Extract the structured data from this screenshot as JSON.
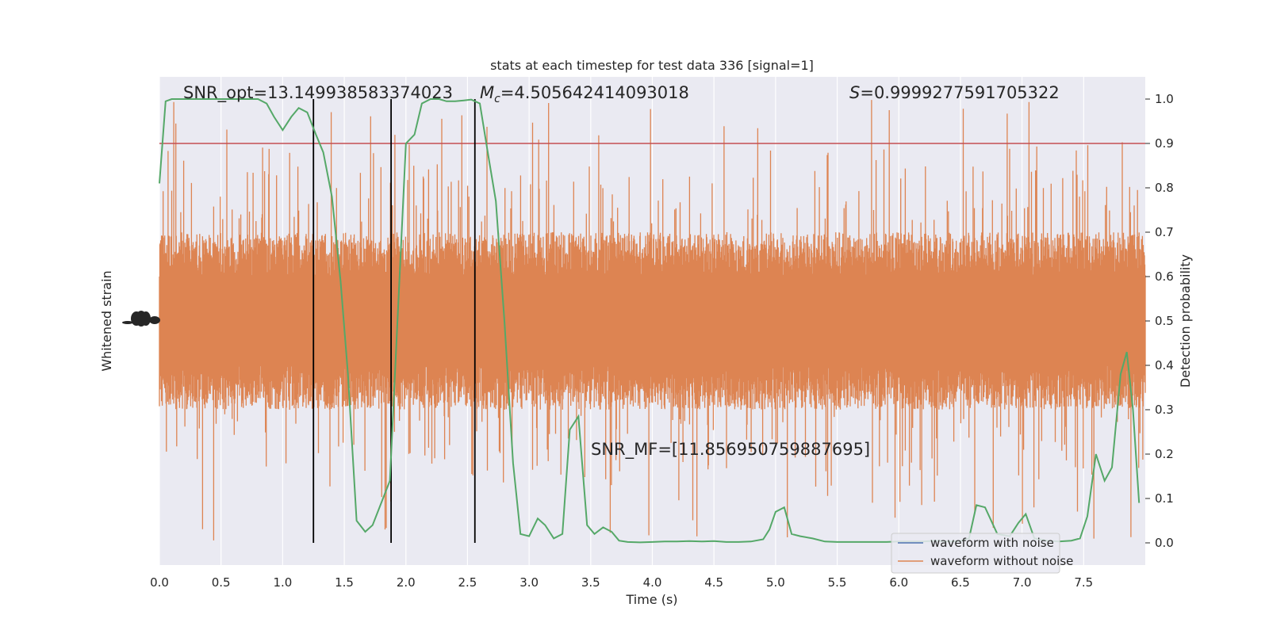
{
  "chart_data": {
    "type": "line",
    "title": "stats at each timestep for test data 336 [signal=1]",
    "xlabel": "Time (s)",
    "ylabel_left": "Whitened strain",
    "ylabel_right": "Detection probability",
    "xlim": [
      0,
      8
    ],
    "ylim_right": [
      -0.05,
      1.05
    ],
    "x_ticks": [
      "0.0",
      "0.5",
      "1.0",
      "1.5",
      "2.0",
      "2.5",
      "3.0",
      "3.5",
      "4.0",
      "4.5",
      "5.0",
      "5.5",
      "6.0",
      "6.5",
      "7.0",
      "7.5"
    ],
    "x_tick_values": [
      0,
      0.5,
      1,
      1.5,
      2,
      2.5,
      3,
      3.5,
      4,
      4.5,
      5,
      5.5,
      6,
      6.5,
      7,
      7.5
    ],
    "y_right_ticks": [
      "0.0",
      "0.1",
      "0.2",
      "0.3",
      "0.4",
      "0.5",
      "0.6",
      "0.7",
      "0.8",
      "0.9",
      "1.0"
    ],
    "y_right_tick_values": [
      0,
      0.1,
      0.2,
      0.3,
      0.4,
      0.5,
      0.6,
      0.7,
      0.8,
      0.9,
      1.0
    ],
    "left_axis_ticks": "illegible overlapping labels",
    "grid": true,
    "legend_position": "lower-right",
    "colors": {
      "background": "#eaeaf2",
      "grid": "#ffffff",
      "waveform_with_noise": "#4c72b0",
      "waveform_without_noise": "#dd8452",
      "probability": "#55a868",
      "threshold": "#c44e52",
      "markers": "#000000"
    },
    "series": [
      {
        "name": "waveform with noise",
        "color": "#4c72b0",
        "values": "dense noise strain, hidden under orange"
      },
      {
        "name": "waveform without noise",
        "color": "#dd8452",
        "values": "dense noise-like strain spanning about 0.3 to 0.7 in probability units, spikes up to 1.0 and down to 0.0"
      },
      {
        "name": "",
        "color": "#55a868",
        "x": [
          0.0,
          0.05,
          0.1,
          0.2,
          0.3,
          0.4,
          0.5,
          0.6,
          0.7,
          0.8,
          0.87,
          0.93,
          1.0,
          1.07,
          1.13,
          1.2,
          1.27,
          1.33,
          1.4,
          1.47,
          1.53,
          1.6,
          1.67,
          1.73,
          1.8,
          1.87,
          1.93,
          2.0,
          2.07,
          2.13,
          2.2,
          2.27,
          2.33,
          2.4,
          2.47,
          2.53,
          2.6,
          2.67,
          2.73,
          2.8,
          2.87,
          2.93,
          3.0,
          3.07,
          3.13,
          3.2,
          3.27,
          3.33,
          3.4,
          3.47,
          3.53,
          3.6,
          3.67,
          3.73,
          3.8,
          3.9,
          4.0,
          4.1,
          4.2,
          4.3,
          4.4,
          4.5,
          4.6,
          4.7,
          4.8,
          4.9,
          4.95,
          5.0,
          5.07,
          5.13,
          5.2,
          5.3,
          5.4,
          5.5,
          5.6,
          5.7,
          5.8,
          5.9,
          6.0,
          6.1,
          6.2,
          6.3,
          6.4,
          6.5,
          6.57,
          6.63,
          6.7,
          6.8,
          6.9,
          6.97,
          7.03,
          7.1,
          7.2,
          7.3,
          7.4,
          7.47,
          7.53,
          7.6,
          7.67,
          7.73,
          7.8,
          7.85,
          7.9,
          7.95
        ],
        "y": [
          0.81,
          0.995,
          1.0,
          1.0,
          1.0,
          1.0,
          1.0,
          1.0,
          1.0,
          1.0,
          0.99,
          0.96,
          0.93,
          0.96,
          0.98,
          0.97,
          0.92,
          0.88,
          0.78,
          0.59,
          0.38,
          0.05,
          0.025,
          0.04,
          0.09,
          0.14,
          0.49,
          0.9,
          0.92,
          0.99,
          1.0,
          1.0,
          0.995,
          0.995,
          0.997,
          0.999,
          0.99,
          0.87,
          0.77,
          0.5,
          0.18,
          0.02,
          0.015,
          0.055,
          0.04,
          0.01,
          0.02,
          0.255,
          0.285,
          0.04,
          0.02,
          0.035,
          0.025,
          0.005,
          0.002,
          0.001,
          0.002,
          0.003,
          0.003,
          0.004,
          0.003,
          0.004,
          0.002,
          0.002,
          0.003,
          0.008,
          0.03,
          0.07,
          0.08,
          0.02,
          0.015,
          0.01,
          0.003,
          0.002,
          0.002,
          0.002,
          0.002,
          0.002,
          0.003,
          0.003,
          0.003,
          0.005,
          0.003,
          0.004,
          0.01,
          0.085,
          0.08,
          0.02,
          0.015,
          0.045,
          0.065,
          0.01,
          0.005,
          0.003,
          0.005,
          0.01,
          0.06,
          0.2,
          0.14,
          0.17,
          0.38,
          0.43,
          0.3,
          0.09
        ]
      }
    ],
    "threshold_y": 0.9,
    "vertical_markers_x": [
      1.25,
      1.88,
      2.56
    ],
    "annotations": [
      {
        "text": "SNR_opt=13.149938583374023"
      },
      {
        "prefix": "M",
        "sub": "c",
        "suffix": "=4.505642414093018"
      },
      {
        "prefix": "S",
        "suffix": "=0.9999277591705322"
      },
      {
        "text": "SNR_MF=[11.856950759887695]"
      }
    ]
  }
}
